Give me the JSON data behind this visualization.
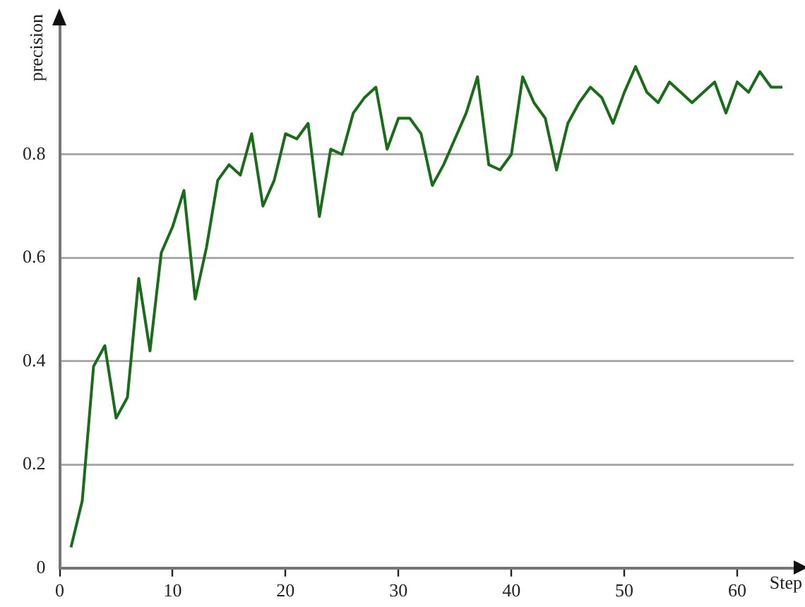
{
  "chart_data": {
    "type": "line",
    "xlabel": "Step",
    "ylabel": "precision",
    "x": [
      1,
      2,
      3,
      4,
      5,
      6,
      7,
      8,
      9,
      10,
      11,
      12,
      13,
      14,
      15,
      16,
      17,
      18,
      19,
      20,
      21,
      22,
      23,
      24,
      25,
      26,
      27,
      28,
      29,
      30,
      31,
      32,
      33,
      34,
      35,
      36,
      37,
      38,
      39,
      40,
      41,
      42,
      43,
      44,
      45,
      46,
      47,
      48,
      49,
      50,
      51,
      52,
      53,
      54,
      55,
      56,
      57,
      58,
      59,
      60,
      61,
      62,
      63,
      64
    ],
    "series": [
      {
        "color": "#1a6b1a",
        "values": [
          0.04,
          0.13,
          0.39,
          0.43,
          0.29,
          0.33,
          0.56,
          0.42,
          0.61,
          0.66,
          0.73,
          0.52,
          0.62,
          0.75,
          0.78,
          0.76,
          0.84,
          0.7,
          0.75,
          0.84,
          0.83,
          0.86,
          0.68,
          0.81,
          0.8,
          0.88,
          0.91,
          0.93,
          0.81,
          0.87,
          0.87,
          0.84,
          0.74,
          0.78,
          0.83,
          0.88,
          0.95,
          0.78,
          0.77,
          0.8,
          0.95,
          0.9,
          0.87,
          0.77,
          0.86,
          0.9,
          0.93,
          0.91,
          0.86,
          0.92,
          0.97,
          0.92,
          0.9,
          0.94,
          0.92,
          0.9,
          0.92,
          0.94,
          0.88,
          0.94,
          0.92,
          0.96,
          0.93,
          0.93
        ]
      }
    ],
    "xlim": [
      0,
      65
    ],
    "ylim": [
      0,
      1.05
    ],
    "xticks": [
      0,
      10,
      20,
      30,
      40,
      50,
      60
    ],
    "yticks": [
      0,
      0.2,
      0.4,
      0.6,
      0.8
    ],
    "grid": "y",
    "legend": false,
    "marker": "none",
    "line_style": "solid"
  }
}
